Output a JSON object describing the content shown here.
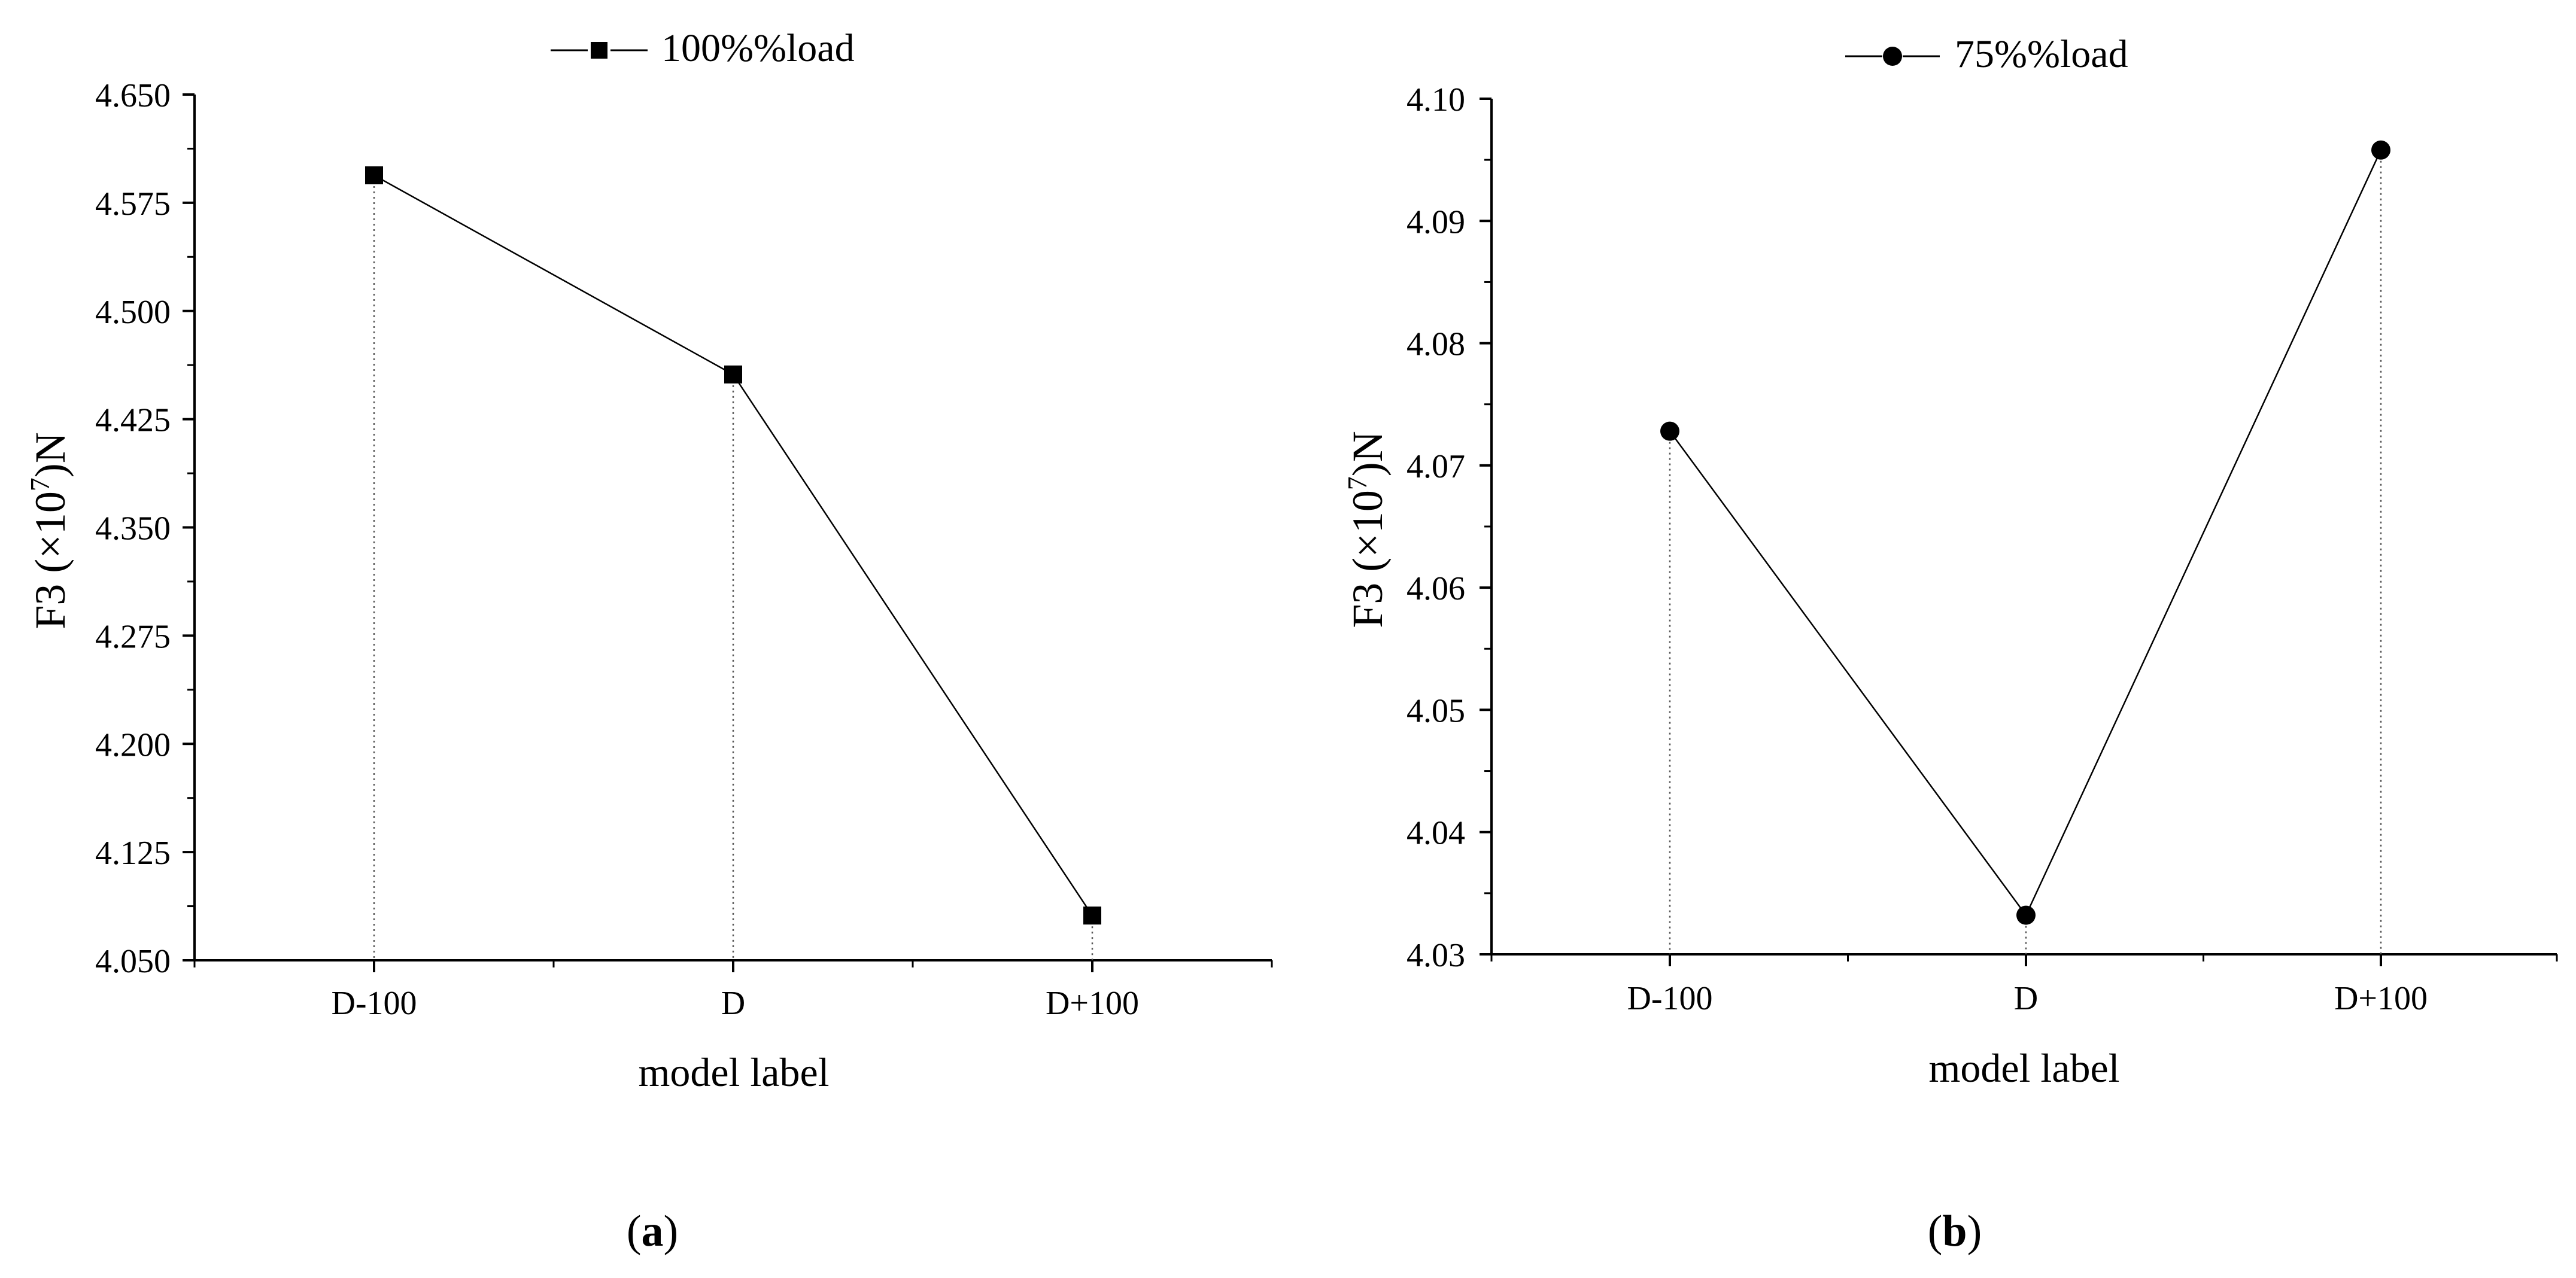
{
  "chart_data": [
    {
      "type": "line",
      "panel_label": "a",
      "categories": [
        "D-100",
        "D",
        "D+100"
      ],
      "series": [
        {
          "name": "100%%load",
          "marker": "square",
          "values": [
            4.594,
            4.456,
            4.081
          ]
        }
      ],
      "title": "",
      "xlabel": "model label",
      "ylabel_main": "F3 (×10",
      "ylabel_sup": "7",
      "ylabel_tail": ")N",
      "ylim": [
        4.05,
        4.65
      ],
      "yticks": [
        4.05,
        4.125,
        4.2,
        4.275,
        4.35,
        4.425,
        4.5,
        4.575,
        4.65
      ],
      "ytick_labels": [
        "4.050",
        "4.125",
        "4.200",
        "4.275",
        "4.350",
        "4.425",
        "4.500",
        "4.575",
        "4.650"
      ],
      "grid": false,
      "drop_lines": true,
      "legend_position": "top-center",
      "line_color": "#000000"
    },
    {
      "type": "line",
      "panel_label": "b",
      "categories": [
        "D-100",
        "D",
        "D+100"
      ],
      "series": [
        {
          "name": "75%%load",
          "marker": "circle",
          "values": [
            4.0728,
            4.0332,
            4.0958
          ]
        }
      ],
      "title": "",
      "xlabel": "model label",
      "ylabel_main": "F3 (×10",
      "ylabel_sup": "7",
      "ylabel_tail": ")N",
      "ylim": [
        4.03,
        4.1
      ],
      "yticks": [
        4.03,
        4.04,
        4.05,
        4.06,
        4.07,
        4.08,
        4.09,
        4.1
      ],
      "ytick_labels": [
        "4.03",
        "4.04",
        "4.05",
        "4.06",
        "4.07",
        "4.08",
        "4.09",
        "4.10"
      ],
      "grid": false,
      "drop_lines": true,
      "legend_position": "top-center",
      "line_color": "#000000"
    }
  ]
}
